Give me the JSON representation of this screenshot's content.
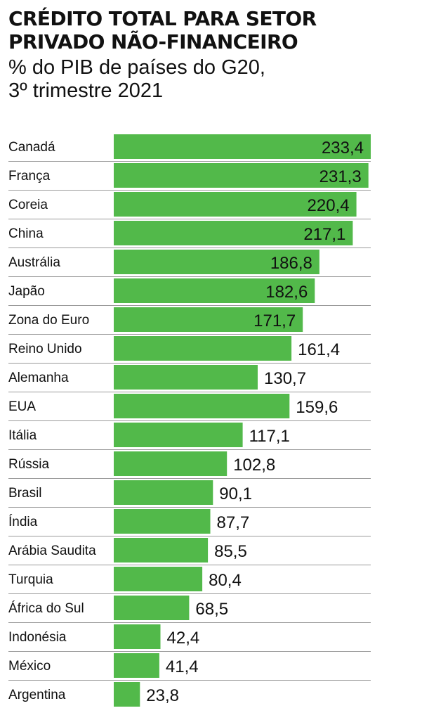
{
  "title_line1": "CRÉDITO TOTAL PARA SETOR",
  "title_line2": "PRIVADO NÃO-FINANCEIRO",
  "subtitle_line1": "% do PIB de países do G20,",
  "subtitle_line2": "3º trimestre 2021",
  "colors": {
    "bar": "#52b94a",
    "separator": "#9a9a9a"
  },
  "chart_data": {
    "type": "bar",
    "orientation": "horizontal",
    "title": "CRÉDITO TOTAL PARA SETOR PRIVADO NÃO-FINANCEIRO",
    "subtitle": "% do PIB de países do G20, 3º trimestre 2021",
    "xlabel": "",
    "ylabel": "",
    "xlim": [
      0,
      233.4
    ],
    "grid": false,
    "categories": [
      "Canadá",
      "França",
      "Coreia",
      "China",
      "Austrália",
      "Japão",
      "Zona do Euro",
      "Reino Unido",
      "Alemanha",
      "EUA",
      "Itália",
      "Rússia",
      "Brasil",
      "Índia",
      "Arábia Saudita",
      "Turquia",
      "África do Sul",
      "Indonésia",
      "México",
      "Argentina"
    ],
    "values": [
      233.4,
      231.3,
      220.4,
      217.1,
      186.8,
      182.6,
      171.7,
      161.4,
      130.7,
      159.6,
      117.1,
      102.8,
      90.1,
      87.7,
      85.5,
      80.4,
      68.5,
      42.4,
      41.4,
      23.8
    ],
    "labels": [
      "233,4",
      "231,3",
      "220,4",
      "217,1",
      "186,8",
      "182,6",
      "171,7",
      "161,4",
      "130,7",
      "159,6",
      "117,1",
      "102,8",
      "90,1",
      "87,7",
      "85,5",
      "80,4",
      "68,5",
      "42,4",
      "41,4",
      "23,8"
    ]
  }
}
